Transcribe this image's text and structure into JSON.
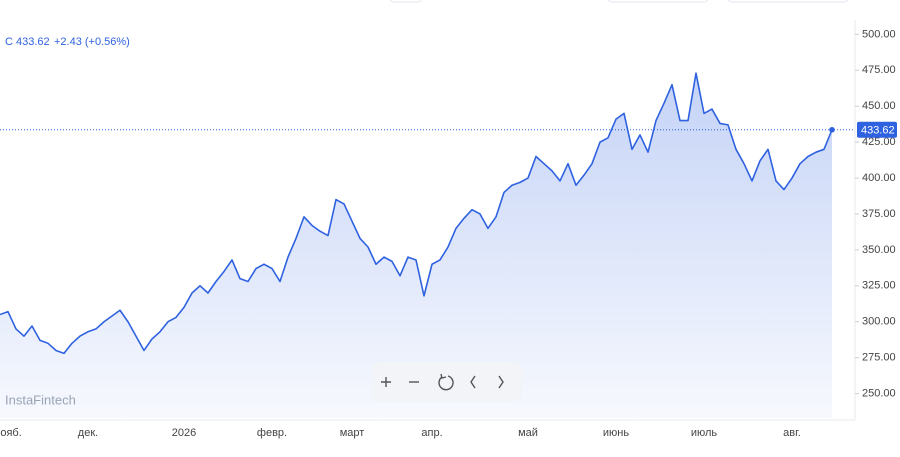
{
  "chart_data": {
    "type": "line",
    "symbol": "C",
    "change": "+2.43 (+0.56%)",
    "watermark": "InstaFintech",
    "color": "#2f62e0",
    "categories": [
      null,
      "нояб.",
      null,
      null,
      null,
      null,
      null,
      null,
      null,
      null,
      null,
      "дек.",
      null,
      null,
      null,
      null,
      null,
      null,
      null,
      null,
      null,
      null,
      null,
      "2026",
      null,
      null,
      null,
      null,
      null,
      null,
      null,
      null,
      null,
      null,
      "февр.",
      null,
      null,
      null,
      null,
      null,
      null,
      null,
      null,
      null,
      "март",
      null,
      null,
      null,
      null,
      null,
      null,
      null,
      null,
      null,
      "апр.",
      null,
      null,
      null,
      null,
      null,
      null,
      null,
      null,
      null,
      null,
      null,
      "май",
      null,
      null,
      null,
      null,
      null,
      null,
      null,
      null,
      null,
      null,
      "июнь",
      null,
      null,
      null,
      null,
      null,
      null,
      null,
      null,
      null,
      null,
      "июль",
      null,
      null,
      null,
      null,
      null,
      null,
      null,
      null,
      null,
      null,
      "авг.",
      null,
      null,
      null,
      null,
      null
    ],
    "values": [
      305,
      307,
      295,
      290,
      297,
      287,
      285,
      280,
      278,
      285,
      290,
      293,
      295,
      300,
      304,
      308,
      300,
      290,
      280,
      288,
      293,
      300,
      303,
      310,
      320,
      325,
      320,
      328,
      335,
      343,
      330,
      328,
      337,
      340,
      337,
      328,
      345,
      358,
      373,
      367,
      363,
      360,
      385,
      382,
      370,
      358,
      352,
      340,
      345,
      342,
      332,
      345,
      343,
      318,
      340,
      343,
      352,
      365,
      372,
      378,
      375,
      365,
      373,
      390,
      395,
      397,
      400,
      415,
      410,
      405,
      398,
      410,
      395,
      402,
      410,
      425,
      428,
      441,
      445,
      420,
      430,
      418,
      440,
      452,
      465,
      440,
      440,
      473,
      445,
      448,
      438,
      437,
      420,
      410,
      398,
      412,
      420,
      398,
      392,
      400,
      410,
      415,
      418,
      420,
      433.62
    ],
    "ylim": [
      233,
      510
    ],
    "yticks": [
      {
        "value": 250,
        "label": "250.00"
      },
      {
        "value": 275,
        "label": "275.00"
      },
      {
        "value": 300,
        "label": "300.00"
      },
      {
        "value": 325,
        "label": "325.00"
      },
      {
        "value": 350,
        "label": "350.00"
      },
      {
        "value": 375,
        "label": "375.00"
      },
      {
        "value": 400,
        "label": "400.00"
      },
      {
        "value": 425,
        "label": "425.00"
      },
      {
        "value": 450,
        "label": "450.00"
      },
      {
        "value": 475,
        "label": "475.00"
      },
      {
        "value": 500,
        "label": "500.00"
      }
    ],
    "grid": false
  }
}
